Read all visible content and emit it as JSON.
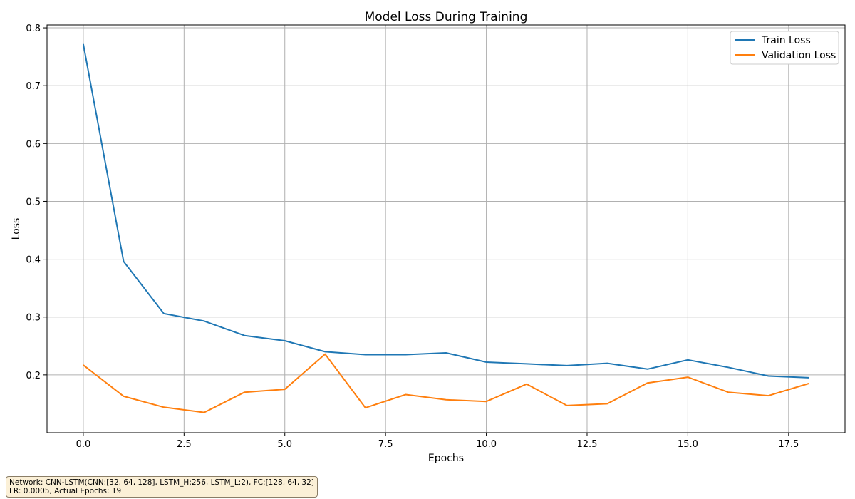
{
  "chart_data": {
    "type": "line",
    "title": "Model Loss During Training",
    "xlabel": "Epochs",
    "ylabel": "Loss",
    "xlim": [
      -0.9,
      18.9
    ],
    "ylim": [
      0.1,
      0.805
    ],
    "xticks": [
      0.0,
      2.5,
      5.0,
      7.5,
      10.0,
      12.5,
      15.0,
      17.5
    ],
    "xtick_labels": [
      "0.0",
      "2.5",
      "5.0",
      "7.5",
      "10.0",
      "12.5",
      "15.0",
      "17.5"
    ],
    "yticks": [
      0.2,
      0.3,
      0.4,
      0.5,
      0.6,
      0.7,
      0.8
    ],
    "ytick_labels": [
      "0.2",
      "0.3",
      "0.4",
      "0.5",
      "0.6",
      "0.7",
      "0.8"
    ],
    "grid": true,
    "legend_position": "top-right",
    "x": [
      0,
      1,
      2,
      3,
      4,
      5,
      6,
      7,
      8,
      9,
      10,
      11,
      12,
      13,
      14,
      15,
      16,
      17,
      18
    ],
    "series": [
      {
        "name": "Train Loss",
        "color": "#1f77b4",
        "values": [
          0.772,
          0.396,
          0.306,
          0.293,
          0.268,
          0.259,
          0.24,
          0.235,
          0.235,
          0.238,
          0.222,
          0.219,
          0.216,
          0.22,
          0.21,
          0.226,
          0.213,
          0.198,
          0.195
        ]
      },
      {
        "name": "Validation Loss",
        "color": "#ff7f0e",
        "values": [
          0.217,
          0.163,
          0.144,
          0.135,
          0.17,
          0.175,
          0.236,
          0.143,
          0.166,
          0.157,
          0.154,
          0.184,
          0.147,
          0.15,
          0.186,
          0.196,
          0.17,
          0.164,
          0.185
        ]
      }
    ]
  },
  "note": {
    "line1": "Network: CNN-LSTM(CNN:[32, 64, 128], LSTM_H:256, LSTM_L:2), FC:[128, 64, 32]",
    "line2": "LR: 0.0005, Actual Epochs: 19"
  }
}
